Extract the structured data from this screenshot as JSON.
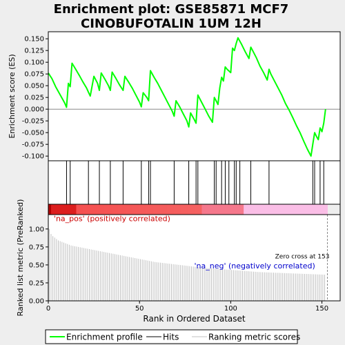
{
  "title_line1": "Enrichment plot: GSE85871 MCF7",
  "title_line2": "CINOBUFOTALIN 1UM 12H",
  "chart_data": {
    "type": "line",
    "es_panel": {
      "ylabel": "Enrichment score (ES)",
      "ylim": [
        -0.11,
        0.165
      ],
      "yticks": [
        -0.1,
        -0.075,
        -0.05,
        -0.025,
        0.0,
        0.025,
        0.05,
        0.075,
        0.1,
        0.125,
        0.15
      ],
      "ytick_labels": [
        "-0.100",
        "-0.075",
        "-0.050",
        "-0.025",
        "0.000",
        "0.025",
        "0.050",
        "0.075",
        "0.100",
        "0.125",
        "0.150"
      ],
      "color": "#00ff00",
      "series": {
        "x": [
          0,
          2,
          4,
          6,
          8,
          9,
          10,
          11,
          12,
          13,
          15,
          17,
          19,
          21,
          22,
          23,
          25,
          27,
          28,
          29,
          31,
          33,
          34,
          35,
          37,
          39,
          41,
          42,
          44,
          46,
          48,
          50,
          51,
          52,
          54,
          55,
          56,
          58,
          60,
          62,
          64,
          66,
          68,
          69,
          70,
          72,
          74,
          76,
          77,
          78,
          80,
          81,
          82,
          84,
          86,
          88,
          90,
          91,
          92,
          93,
          94,
          95,
          96,
          97,
          98,
          100,
          101,
          102,
          103,
          104,
          106,
          108,
          110,
          111,
          112,
          114,
          116,
          118,
          120,
          121,
          122,
          124,
          126,
          128,
          130,
          132,
          134,
          136,
          138,
          140,
          142,
          144,
          145,
          146,
          147,
          148,
          149,
          150,
          151,
          152
        ],
        "y": [
          0.077,
          0.065,
          0.048,
          0.034,
          0.02,
          0.013,
          0.004,
          0.055,
          0.048,
          0.098,
          0.085,
          0.072,
          0.058,
          0.045,
          0.036,
          0.028,
          0.07,
          0.055,
          0.04,
          0.077,
          0.064,
          0.05,
          0.04,
          0.079,
          0.066,
          0.052,
          0.04,
          0.07,
          0.058,
          0.045,
          0.03,
          0.015,
          0.005,
          0.035,
          0.025,
          0.018,
          0.082,
          0.068,
          0.055,
          0.04,
          0.025,
          0.01,
          -0.005,
          -0.015,
          0.018,
          0.005,
          -0.01,
          -0.025,
          -0.038,
          -0.008,
          -0.022,
          -0.03,
          0.03,
          0.015,
          0.0,
          -0.015,
          -0.028,
          0.025,
          0.018,
          0.01,
          0.045,
          0.068,
          0.06,
          0.09,
          0.085,
          0.078,
          0.13,
          0.125,
          0.14,
          0.152,
          0.138,
          0.122,
          0.108,
          0.132,
          0.125,
          0.11,
          0.092,
          0.078,
          0.062,
          0.085,
          0.075,
          0.06,
          0.045,
          0.03,
          0.012,
          -0.002,
          -0.018,
          -0.035,
          -0.05,
          -0.068,
          -0.085,
          -0.1,
          -0.075,
          -0.05,
          -0.058,
          -0.065,
          -0.04,
          -0.048,
          -0.03,
          0.0
        ]
      }
    },
    "hits": [
      10,
      12,
      22,
      28,
      34,
      41,
      51,
      55,
      56,
      69,
      77,
      81,
      82,
      91,
      92,
      95,
      97,
      99,
      102,
      103,
      105,
      111,
      121,
      145,
      146,
      149,
      151
    ],
    "gradient_label_pos": "'na_pos' (positively correlated)",
    "gradient_label_neg": "'na_neg' (negatively correlated)",
    "metric_panel": {
      "ylabel": "Ranked list metric (PreRanked)",
      "ylim": [
        0,
        1.2
      ],
      "yticks": [
        0.0,
        0.25,
        0.5,
        0.75,
        1.0
      ],
      "ytick_labels": [
        "0.00",
        "0.25",
        "0.50",
        "0.75",
        "1.00"
      ],
      "values": [
        1.0,
        0.93,
        0.9,
        0.88,
        0.86,
        0.84,
        0.83,
        0.82,
        0.81,
        0.8,
        0.79,
        0.78,
        0.77,
        0.765,
        0.76,
        0.755,
        0.75,
        0.745,
        0.74,
        0.735,
        0.73,
        0.725,
        0.72,
        0.715,
        0.71,
        0.705,
        0.7,
        0.695,
        0.69,
        0.685,
        0.68,
        0.675,
        0.67,
        0.665,
        0.66,
        0.655,
        0.65,
        0.645,
        0.64,
        0.635,
        0.63,
        0.625,
        0.62,
        0.615,
        0.61,
        0.605,
        0.6,
        0.595,
        0.59,
        0.585,
        0.58,
        0.575,
        0.57,
        0.565,
        0.56,
        0.555,
        0.55,
        0.545,
        0.54,
        0.537,
        0.534,
        0.531,
        0.528,
        0.525,
        0.522,
        0.519,
        0.516,
        0.513,
        0.51,
        0.507,
        0.504,
        0.501,
        0.498,
        0.495,
        0.492,
        0.489,
        0.486,
        0.483,
        0.48,
        0.477,
        0.474,
        0.471,
        0.468,
        0.465,
        0.462,
        0.46,
        0.458,
        0.456,
        0.454,
        0.452,
        0.45,
        0.448,
        0.446,
        0.444,
        0.442,
        0.44,
        0.438,
        0.436,
        0.434,
        0.432,
        0.43,
        0.428,
        0.426,
        0.424,
        0.422,
        0.42,
        0.418,
        0.416,
        0.414,
        0.412,
        0.41,
        0.408,
        0.406,
        0.404,
        0.402,
        0.4,
        0.399,
        0.398,
        0.397,
        0.396,
        0.395,
        0.394,
        0.393,
        0.392,
        0.391,
        0.39,
        0.389,
        0.388,
        0.387,
        0.386,
        0.385,
        0.384,
        0.383,
        0.382,
        0.381,
        0.38,
        0.379,
        0.378,
        0.377,
        0.376,
        0.375,
        0.374,
        0.373,
        0.372,
        0.371,
        0.37,
        0.369,
        0.368,
        0.367,
        0.366,
        0.365,
        0.364
      ],
      "zero_cross_label": "Zero cross at 153",
      "zero_cross_x": 153
    },
    "xaxis": {
      "label": "Rank in Ordered Dataset",
      "xlim": [
        0,
        160
      ],
      "xticks": [
        0,
        50,
        100,
        150
      ],
      "xtick_labels": [
        "0",
        "50",
        "100",
        "150"
      ]
    },
    "legend": {
      "position": "bottom",
      "items": [
        {
          "label": "Enrichment profile",
          "kind": "line",
          "color": "#00ff00"
        },
        {
          "label": "Hits",
          "kind": "line",
          "color": "#000000"
        },
        {
          "label": "Ranking metric scores",
          "kind": "line",
          "color": "#c0c0c0"
        }
      ]
    }
  }
}
